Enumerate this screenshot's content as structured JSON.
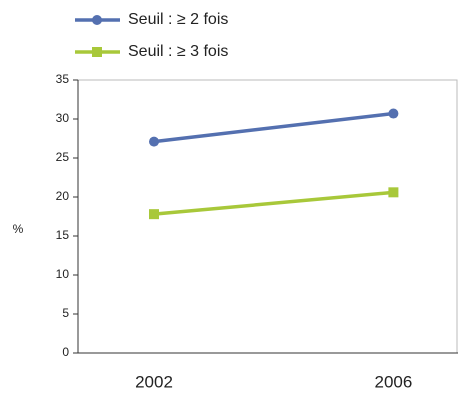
{
  "chart_data": {
    "type": "line",
    "y_label": "%",
    "categories": [
      "2002",
      "2006"
    ],
    "series": [
      {
        "name": "Seuil : ≥ 2 fois",
        "color": "#5470b0",
        "marker": "circle",
        "values": [
          27.1,
          30.7
        ]
      },
      {
        "name": "Seuil : ≥ 3 fois",
        "color": "#a8c83a",
        "marker": "square",
        "values": [
          17.8,
          20.6
        ]
      }
    ],
    "ylim": [
      0,
      35
    ],
    "yticks": [
      0,
      5,
      10,
      15,
      20,
      25,
      30,
      35
    ],
    "grid": false,
    "legend": "top-left"
  }
}
